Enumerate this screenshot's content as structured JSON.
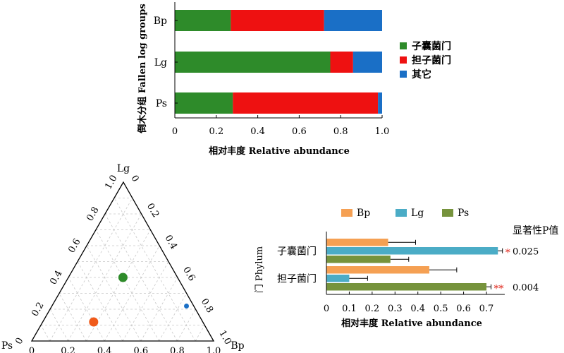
{
  "chart_data": [
    {
      "type": "bar",
      "subtype": "stacked-horizontal",
      "title": "",
      "ylabel": "倒木分组 Fallen log groups",
      "xlabel": "相对丰度 Relative abundance",
      "categories": [
        "Bp",
        "Lg",
        "Ps"
      ],
      "xlim": [
        0,
        1.0
      ],
      "xticks": [
        "0",
        "0.2",
        "0.4",
        "0.6",
        "0.8",
        "1.0"
      ],
      "series": [
        {
          "name": "子囊菌门",
          "color": "#2e8b2a",
          "values": [
            0.27,
            0.75,
            0.28
          ]
        },
        {
          "name": "担子菌门",
          "color": "#ee1111",
          "values": [
            0.45,
            0.11,
            0.7
          ]
        },
        {
          "name": "其它",
          "color": "#1a6fc6",
          "values": [
            0.28,
            0.14,
            0.02
          ]
        }
      ],
      "grid": false,
      "legend_position": "right"
    },
    {
      "type": "scatter",
      "subtype": "ternary",
      "title": "",
      "vertex_labels": {
        "top": "Lg",
        "left": "Ps",
        "right": "Bp"
      },
      "edge_ticks": [
        "0",
        "0.2",
        "0.4",
        "0.6",
        "0.8",
        "1.0"
      ],
      "grid": true,
      "points": [
        {
          "Lg": 0.4,
          "Bp": 0.3,
          "Ps": 0.3,
          "color": "#2e8b2a",
          "size": "large"
        },
        {
          "Lg": 0.12,
          "Bp": 0.28,
          "Ps": 0.6,
          "color": "#f05a1a",
          "size": "large"
        },
        {
          "Lg": 0.22,
          "Bp": 0.74,
          "Ps": 0.04,
          "color": "#1a6fc6",
          "size": "small"
        }
      ]
    },
    {
      "type": "bar",
      "subtype": "grouped-horizontal-errorbar",
      "title": "",
      "ylabel": "门 Phylum",
      "xlabel": "相对丰度  Relative abundance",
      "categories": [
        "子囊菌门",
        "担子菌门"
      ],
      "xlim": [
        0,
        0.8
      ],
      "xticks": [
        "0",
        "0.1",
        "0.2",
        "0.3",
        "0.4",
        "0.5",
        "0.6",
        "0.7"
      ],
      "series": [
        {
          "name": "Bp",
          "color": "#f5a053",
          "values": [
            0.27,
            0.45
          ],
          "errors": [
            0.12,
            0.12
          ]
        },
        {
          "name": "Lg",
          "color": "#4bacc6",
          "values": [
            0.75,
            0.1
          ],
          "errors": [
            0.02,
            0.08
          ]
        },
        {
          "name": "Ps",
          "color": "#76933c",
          "values": [
            0.28,
            0.7
          ],
          "errors": [
            0.08,
            0.02
          ]
        }
      ],
      "significance_header": "显著性P值",
      "significance": [
        {
          "stars": "*",
          "p_value": "0.025"
        },
        {
          "stars": "**",
          "p_value": "0.004"
        }
      ],
      "star_color": "#e0261b",
      "grid": false,
      "legend_position": "top"
    }
  ]
}
